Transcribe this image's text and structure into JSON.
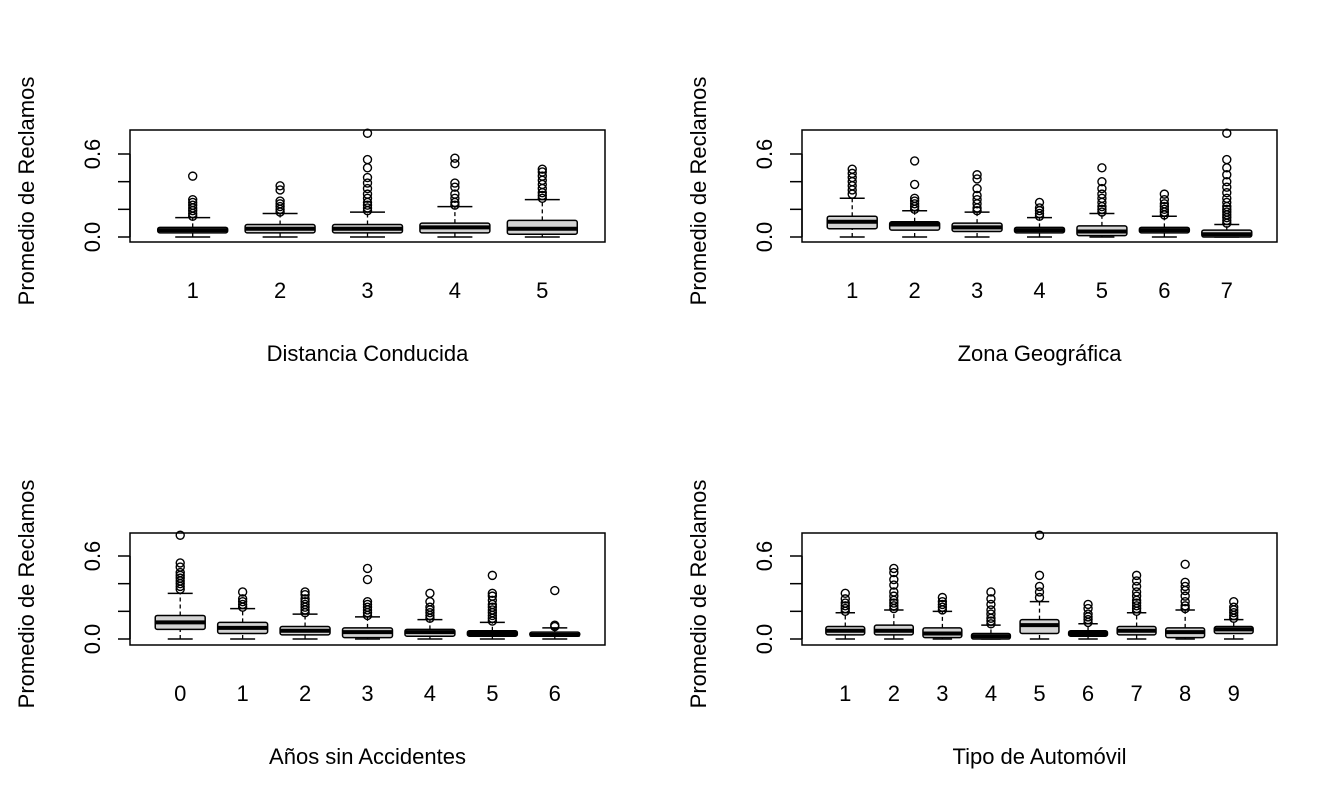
{
  "chart_data": [
    {
      "type": "boxplot",
      "xlabel": "Distancia Conducida",
      "ylabel": "Promedio de Reclamos",
      "ylim": [
        0.0,
        0.8
      ],
      "y_ticks": [
        "0.0",
        "0.6"
      ],
      "categories": [
        "1",
        "2",
        "3",
        "4",
        "5"
      ],
      "boxes": [
        {
          "min": 0.0,
          "q1": 0.03,
          "median": 0.05,
          "q3": 0.07,
          "max": 0.14,
          "outliers": [
            0.15,
            0.17,
            0.19,
            0.21,
            0.23,
            0.25,
            0.27,
            0.44
          ]
        },
        {
          "min": 0.0,
          "q1": 0.03,
          "median": 0.06,
          "q3": 0.09,
          "max": 0.17,
          "outliers": [
            0.18,
            0.2,
            0.22,
            0.24,
            0.26,
            0.34,
            0.37
          ]
        },
        {
          "min": 0.0,
          "q1": 0.03,
          "median": 0.06,
          "q3": 0.09,
          "max": 0.18,
          "outliers": [
            0.19,
            0.21,
            0.23,
            0.25,
            0.28,
            0.31,
            0.35,
            0.39,
            0.43,
            0.5,
            0.56,
            0.75
          ]
        },
        {
          "min": 0.0,
          "q1": 0.03,
          "median": 0.07,
          "q3": 0.1,
          "max": 0.22,
          "outliers": [
            0.23,
            0.25,
            0.28,
            0.31,
            0.36,
            0.39,
            0.53,
            0.57
          ]
        },
        {
          "min": 0.0,
          "q1": 0.02,
          "median": 0.06,
          "q3": 0.12,
          "max": 0.27,
          "outliers": [
            0.28,
            0.3,
            0.32,
            0.35,
            0.38,
            0.41,
            0.44,
            0.47,
            0.49
          ]
        }
      ]
    },
    {
      "type": "boxplot",
      "xlabel": "Zona Geográfica",
      "ylabel": "Promedio de Reclamos",
      "ylim": [
        0.0,
        0.8
      ],
      "y_ticks": [
        "0.0",
        "0.6"
      ],
      "categories": [
        "1",
        "2",
        "3",
        "4",
        "5",
        "6",
        "7"
      ],
      "boxes": [
        {
          "min": 0.0,
          "q1": 0.06,
          "median": 0.11,
          "q3": 0.15,
          "max": 0.28,
          "outliers": [
            0.31,
            0.34,
            0.37,
            0.4,
            0.43,
            0.46,
            0.49
          ]
        },
        {
          "min": 0.0,
          "q1": 0.05,
          "median": 0.09,
          "q3": 0.11,
          "max": 0.19,
          "outliers": [
            0.2,
            0.22,
            0.24,
            0.26,
            0.28,
            0.38,
            0.55
          ]
        },
        {
          "min": 0.0,
          "q1": 0.04,
          "median": 0.07,
          "q3": 0.1,
          "max": 0.18,
          "outliers": [
            0.19,
            0.21,
            0.24,
            0.27,
            0.3,
            0.35,
            0.42,
            0.45
          ]
        },
        {
          "min": 0.0,
          "q1": 0.03,
          "median": 0.05,
          "q3": 0.07,
          "max": 0.14,
          "outliers": [
            0.15,
            0.17,
            0.19,
            0.21,
            0.25
          ]
        },
        {
          "min": 0.0,
          "q1": 0.01,
          "median": 0.04,
          "q3": 0.08,
          "max": 0.17,
          "outliers": [
            0.18,
            0.2,
            0.22,
            0.25,
            0.28,
            0.31,
            0.35,
            0.4,
            0.5
          ]
        },
        {
          "min": 0.0,
          "q1": 0.03,
          "median": 0.05,
          "q3": 0.07,
          "max": 0.15,
          "outliers": [
            0.16,
            0.18,
            0.2,
            0.22,
            0.24,
            0.27,
            0.31
          ]
        },
        {
          "min": 0.0,
          "q1": 0.0,
          "median": 0.02,
          "q3": 0.05,
          "max": 0.09,
          "outliers": [
            0.1,
            0.12,
            0.14,
            0.16,
            0.18,
            0.2,
            0.22,
            0.25,
            0.28,
            0.32,
            0.36,
            0.4,
            0.45,
            0.5,
            0.56,
            0.75
          ]
        }
      ]
    },
    {
      "type": "boxplot",
      "xlabel": "Años sin Accidentes",
      "ylabel": "Promedio de Reclamos",
      "ylim": [
        0.0,
        0.8
      ],
      "y_ticks": [
        "0.0",
        "0.6"
      ],
      "categories": [
        "0",
        "1",
        "2",
        "3",
        "4",
        "5",
        "6"
      ],
      "boxes": [
        {
          "min": 0.0,
          "q1": 0.07,
          "median": 0.12,
          "q3": 0.17,
          "max": 0.33,
          "outliers": [
            0.36,
            0.38,
            0.4,
            0.42,
            0.44,
            0.46,
            0.48,
            0.52,
            0.55,
            0.75
          ]
        },
        {
          "min": 0.0,
          "q1": 0.04,
          "median": 0.08,
          "q3": 0.12,
          "max": 0.22,
          "outliers": [
            0.23,
            0.25,
            0.27,
            0.29,
            0.34
          ]
        },
        {
          "min": 0.0,
          "q1": 0.03,
          "median": 0.06,
          "q3": 0.09,
          "max": 0.18,
          "outliers": [
            0.19,
            0.21,
            0.23,
            0.25,
            0.27,
            0.29,
            0.32,
            0.34
          ]
        },
        {
          "min": 0.0,
          "q1": 0.01,
          "median": 0.05,
          "q3": 0.08,
          "max": 0.16,
          "outliers": [
            0.17,
            0.19,
            0.21,
            0.23,
            0.25,
            0.27,
            0.43,
            0.51
          ]
        },
        {
          "min": 0.0,
          "q1": 0.02,
          "median": 0.05,
          "q3": 0.07,
          "max": 0.14,
          "outliers": [
            0.15,
            0.17,
            0.19,
            0.21,
            0.23,
            0.27,
            0.33
          ]
        },
        {
          "min": 0.0,
          "q1": 0.02,
          "median": 0.04,
          "q3": 0.06,
          "max": 0.12,
          "outliers": [
            0.13,
            0.15,
            0.17,
            0.19,
            0.21,
            0.23,
            0.25,
            0.28,
            0.31,
            0.33,
            0.46
          ]
        },
        {
          "min": 0.0,
          "q1": 0.02,
          "median": 0.03,
          "q3": 0.05,
          "max": 0.08,
          "outliers": [
            0.09,
            0.1,
            0.35
          ]
        }
      ]
    },
    {
      "type": "boxplot",
      "xlabel": "Tipo de Automóvil",
      "ylabel": "Promedio de Reclamos",
      "ylim": [
        0.0,
        0.8
      ],
      "y_ticks": [
        "0.0",
        "0.6"
      ],
      "categories": [
        "1",
        "2",
        "3",
        "4",
        "5",
        "6",
        "7",
        "8",
        "9"
      ],
      "boxes": [
        {
          "min": 0.0,
          "q1": 0.03,
          "median": 0.06,
          "q3": 0.09,
          "max": 0.19,
          "outliers": [
            0.2,
            0.22,
            0.24,
            0.26,
            0.29,
            0.33
          ]
        },
        {
          "min": 0.0,
          "q1": 0.03,
          "median": 0.06,
          "q3": 0.1,
          "max": 0.21,
          "outliers": [
            0.22,
            0.24,
            0.26,
            0.28,
            0.31,
            0.34,
            0.39,
            0.43,
            0.48,
            0.51
          ]
        },
        {
          "min": 0.0,
          "q1": 0.01,
          "median": 0.04,
          "q3": 0.08,
          "max": 0.2,
          "outliers": [
            0.21,
            0.23,
            0.25,
            0.27,
            0.3
          ]
        },
        {
          "min": 0.0,
          "q1": 0.0,
          "median": 0.02,
          "q3": 0.04,
          "max": 0.1,
          "outliers": [
            0.11,
            0.13,
            0.15,
            0.18,
            0.21,
            0.25,
            0.29,
            0.34
          ]
        },
        {
          "min": 0.0,
          "q1": 0.04,
          "median": 0.1,
          "q3": 0.14,
          "max": 0.27,
          "outliers": [
            0.3,
            0.34,
            0.38,
            0.46,
            0.75
          ]
        },
        {
          "min": 0.0,
          "q1": 0.02,
          "median": 0.04,
          "q3": 0.06,
          "max": 0.11,
          "outliers": [
            0.12,
            0.14,
            0.16,
            0.18,
            0.22,
            0.25
          ]
        },
        {
          "min": 0.0,
          "q1": 0.03,
          "median": 0.06,
          "q3": 0.09,
          "max": 0.19,
          "outliers": [
            0.2,
            0.22,
            0.24,
            0.26,
            0.28,
            0.31,
            0.34,
            0.38,
            0.42,
            0.46
          ]
        },
        {
          "min": 0.0,
          "q1": 0.01,
          "median": 0.05,
          "q3": 0.08,
          "max": 0.21,
          "outliers": [
            0.22,
            0.24,
            0.27,
            0.31,
            0.35,
            0.38,
            0.41,
            0.54
          ]
        },
        {
          "min": 0.0,
          "q1": 0.04,
          "median": 0.07,
          "q3": 0.09,
          "max": 0.14,
          "outliers": [
            0.15,
            0.17,
            0.19,
            0.21,
            0.23,
            0.27
          ]
        }
      ]
    }
  ]
}
